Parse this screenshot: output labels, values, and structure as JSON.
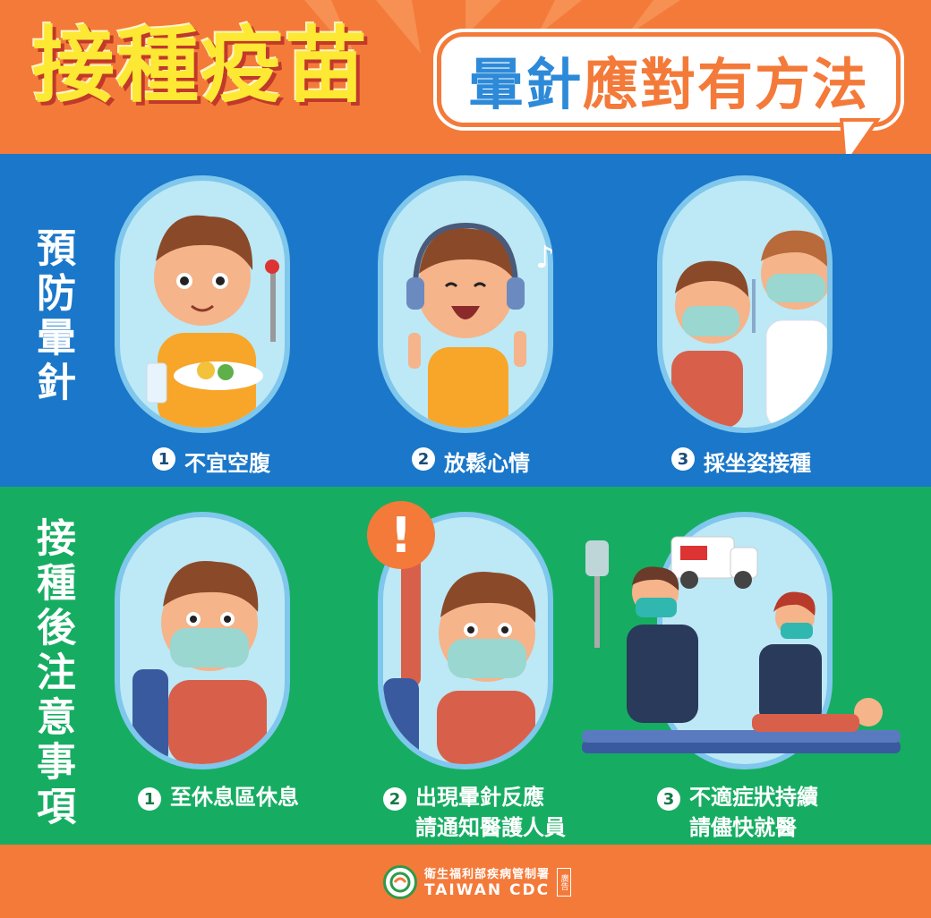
{
  "header": {
    "title": "接種疫苗",
    "bubble_blue": "暈針",
    "bubble_orange": "應對有方法"
  },
  "prevent": {
    "label": "預防暈針",
    "items": [
      {
        "num": "1",
        "text": "不宜空腹"
      },
      {
        "num": "2",
        "text": "放鬆心情"
      },
      {
        "num": "3",
        "text": "採坐姿接種"
      }
    ]
  },
  "after": {
    "label": "接種後注意事項",
    "items": [
      {
        "num": "1",
        "line1": "至休息區休息",
        "line2": ""
      },
      {
        "num": "2",
        "line1": "出現暈針反應",
        "line2": "請通知醫護人員"
      },
      {
        "num": "3",
        "line1": "不適症狀持續",
        "line2": "請儘快就醫"
      }
    ]
  },
  "alert_mark": "!",
  "music_note": "♪",
  "footer": {
    "org_cn": "衛生福利部疾病管制署",
    "org_en": "TAIWAN CDC",
    "ad_tag": "廣告"
  },
  "colors": {
    "orange": "#f47a3a",
    "blue": "#1a77c9",
    "green": "#16ad62",
    "yellow": "#fde833"
  }
}
